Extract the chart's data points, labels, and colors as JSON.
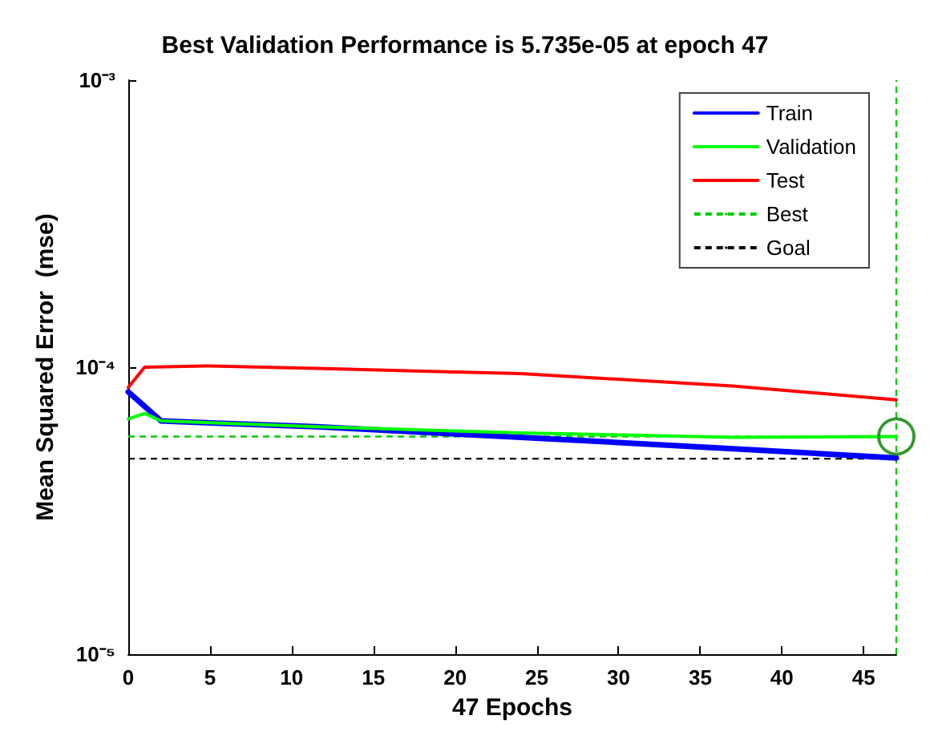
{
  "chart_data": {
    "type": "line",
    "title": "Best Validation Performance is 5.735e-05 at epoch 47",
    "xlabel": "47 Epochs",
    "ylabel": "Mean Squared Error  (mse)",
    "series": [
      {
        "name": "Train",
        "color": "#0000ff",
        "x": [
          0,
          1,
          2,
          5,
          11.5,
          24,
          37,
          47
        ],
        "values": [
          8.2e-05,
          7.3e-05,
          6.5e-05,
          6.4e-05,
          6.2e-05,
          5.7e-05,
          5.2e-05,
          4.83e-05
        ]
      },
      {
        "name": "Validation",
        "color": "#00ff00",
        "x": [
          0,
          1,
          2,
          11.5,
          24,
          37,
          47
        ],
        "values": [
          6.6e-05,
          6.9e-05,
          6.5e-05,
          6.2e-05,
          5.9e-05,
          5.7e-05,
          5.735e-05
        ]
      },
      {
        "name": "Test",
        "color": "#ff0000",
        "x": [
          0,
          1,
          5,
          11.5,
          24,
          37,
          47
        ],
        "values": [
          8.5e-05,
          0.0001,
          0.000101,
          9.9e-05,
          9.5e-05,
          8.6e-05,
          7.7e-05
        ]
      },
      {
        "type": "scatter",
        "color": "#008000",
        "marker": "circle",
        "x": [
          47
        ],
        "values": [
          5.735e-05
        ]
      }
    ],
    "ref_lines": [
      {
        "axis": "y",
        "value": 5.735e-05,
        "label": "Best",
        "color": "#00cc00",
        "line_style": "dashed"
      },
      {
        "axis": "x",
        "value": 47,
        "color": "#00cc00",
        "line_style": "dashed"
      },
      {
        "axis": "y",
        "value": 4.8e-05,
        "label": "Goal",
        "color": "#000000",
        "line_style": "dashed"
      }
    ],
    "xlim": [
      0,
      47
    ],
    "xticks": [
      0,
      5,
      10,
      15,
      20,
      25,
      30,
      35,
      40,
      45
    ],
    "log": true,
    "ylim": [
      1e-05,
      0.001
    ],
    "yticks": [
      {
        "value": 1e-05,
        "label": "10⁻⁵"
      },
      {
        "value": 0.0001,
        "label": "10⁻⁴"
      },
      {
        "value": 0.001,
        "label": "10⁻³"
      }
    ],
    "grid": false,
    "legend": "top right",
    "marker": "none",
    "line_style": "solid"
  }
}
